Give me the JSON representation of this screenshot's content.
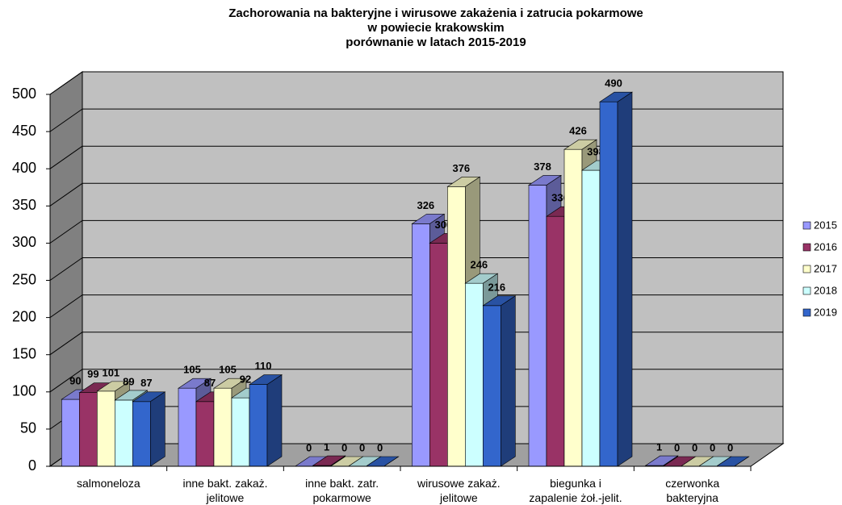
{
  "chart_data": {
    "type": "bar3d",
    "title": [
      "Zachorowania na bakteryjne i wirusowe zakażenia i zatrucia pokarmowe",
      "w powiecie krakowskim",
      "porównanie w latach 2015-2019"
    ],
    "categories": [
      "salmoneloza",
      "inne bakt. zakaż.\njelitowe",
      "inne bakt. zatr.\npokarmowe",
      "wirusowe zakaż.\njelitowe",
      "biegunka i\nzapalenie żoł.-jelit.",
      "czerwonka\nbakteryjna"
    ],
    "series": [
      {
        "name": "2015",
        "color": "#9999ff",
        "values": [
          90,
          105,
          0,
          326,
          378,
          1
        ]
      },
      {
        "name": "2016",
        "color": "#993366",
        "values": [
          99,
          87,
          1,
          300,
          336,
          0
        ]
      },
      {
        "name": "2017",
        "color": "#ffffcc",
        "values": [
          101,
          105,
          0,
          376,
          426,
          0
        ]
      },
      {
        "name": "2018",
        "color": "#ccffff",
        "values": [
          89,
          92,
          0,
          246,
          398,
          0
        ]
      },
      {
        "name": "2019",
        "color": "#3366cc",
        "values": [
          87,
          110,
          0,
          216,
          490,
          0
        ]
      }
    ],
    "ylim": [
      0,
      500
    ],
    "yticks": [
      0,
      50,
      100,
      150,
      200,
      250,
      300,
      350,
      400,
      450,
      500
    ],
    "grid": true,
    "legend": "right"
  }
}
